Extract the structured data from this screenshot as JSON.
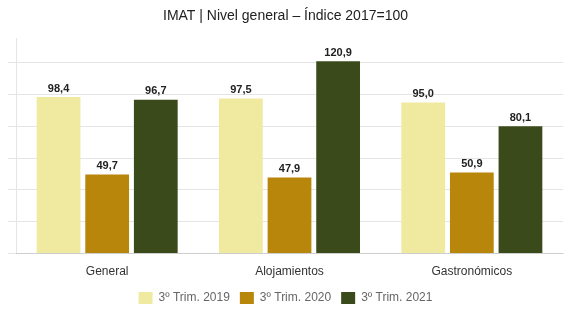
{
  "chart_data": {
    "type": "bar",
    "title": "IMAT | Nivel general – Índice 2017=100",
    "categories": [
      "General",
      "Alojamientos",
      "Gastronómicos"
    ],
    "series": [
      {
        "name": "3º Trim. 2019",
        "color": "#F0EAA0",
        "values": [
          98.4,
          97.5,
          95.0
        ],
        "value_labels": [
          "98,4",
          "97,5",
          "95,0"
        ]
      },
      {
        "name": "3º Trim. 2020",
        "color": "#B8860B",
        "values": [
          49.7,
          47.9,
          50.9
        ],
        "value_labels": [
          "49,7",
          "47,9",
          "50,9"
        ]
      },
      {
        "name": "3º Trim. 2021",
        "color": "#3B4A1A",
        "values": [
          96.7,
          120.9,
          80.1
        ],
        "value_labels": [
          "96,7",
          "120,9",
          "80,1"
        ]
      }
    ],
    "ylim": [
      0,
      135
    ],
    "yticks": [
      0,
      20,
      40,
      60,
      80,
      100,
      120
    ],
    "grid": true,
    "legend": "bottom",
    "data_labels": true,
    "tick_labels": "x"
  }
}
